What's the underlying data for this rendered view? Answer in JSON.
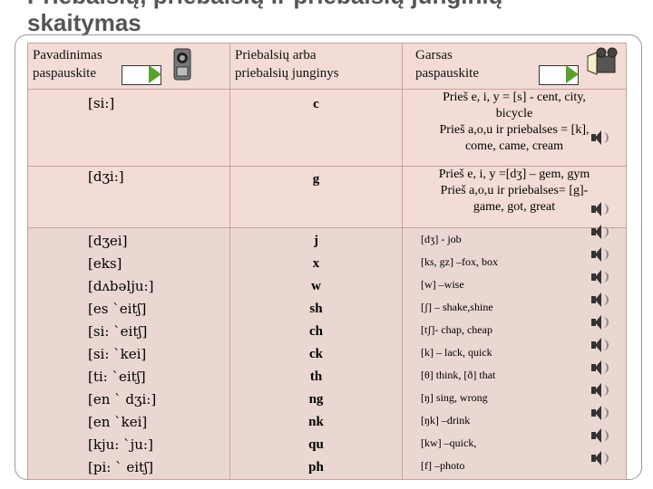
{
  "title": {
    "line1": "Priebalsių, priebalsių ir priebalsių junginių",
    "line2": "skaitymas"
  },
  "headers": {
    "col1": [
      "Pavadinimas",
      "paspauskite"
    ],
    "col2": [
      "Priebalsių arba",
      "priebalsių junginys"
    ],
    "col3": [
      "Garsas",
      "paspauskite"
    ]
  },
  "upper_rows": [
    {
      "name": "[si:]",
      "letter": "c",
      "rule": [
        "Prieš e, i, y = [s] - cent, city,",
        "bicycle",
        "Prieš a,o,u ir priebalses = [k],",
        "come, came, cream"
      ]
    },
    {
      "name": "[dʒi:]",
      "letter": "g",
      "rule": [
        "Prieš e, i, y =[dʒ] – gem, gym",
        "Prieš a,o,u ir priebalses= [g]-",
        "game, got, great"
      ]
    }
  ],
  "lower_rows": [
    {
      "name": "[dʒei]",
      "letter": "j",
      "example": "[dʒ] - job"
    },
    {
      "name": "[eks]",
      "letter": "x",
      "example": "[ks, gz] –fox, box"
    },
    {
      "name": "[dʌbəlju:]",
      "letter": "w",
      "example": "[w] –wise"
    },
    {
      "name": "[es `eitʃ]",
      "letter": "sh",
      "example": "[ʃ] – shake,shine"
    },
    {
      "name": "[si: `eitʃ]",
      "letter": "ch",
      "example": "[tʃ]- chap, cheap"
    },
    {
      "name": "[si: `kei]",
      "letter": "ck",
      "example": "[k] – lack, quick"
    },
    {
      "name": "[ti: `eitʃ]",
      "letter": "th",
      "example": "[θ] think, [ð]  that"
    },
    {
      "name": "[en ` dʒi:]",
      "letter": "ng",
      "example": "[ŋ] sing, wrong"
    },
    {
      "name": "[en `kei]",
      "letter": "nk",
      "example": "[ŋk] –drink"
    },
    {
      "name": "[kju: `ju:]",
      "letter": "qu",
      "example": "[kw] –quick,"
    },
    {
      "name": "[pi: ` eitʃ]",
      "letter": "ph",
      "example": "[f] –photo"
    }
  ],
  "colors": {
    "header": "#dd5b4c",
    "cell": "#f3dcd6",
    "arrow": "#5aa02c"
  },
  "icons": [
    "video-camera-icon",
    "film-projector-icon",
    "speaker-icon"
  ]
}
